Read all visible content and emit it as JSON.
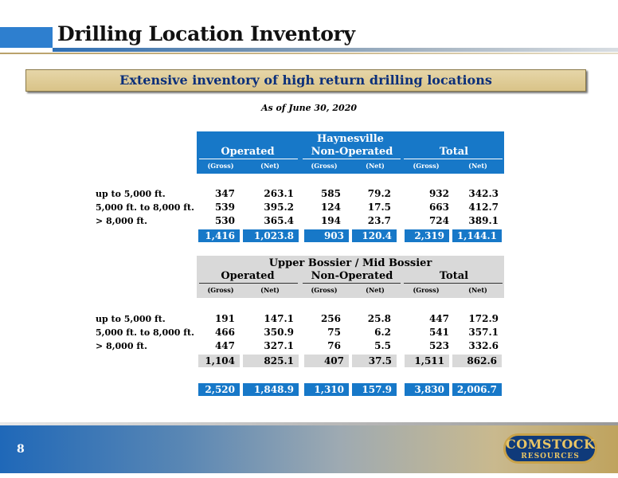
{
  "title": "Drilling Location Inventory",
  "banner": "Extensive inventory of high return drilling locations",
  "as_of": "As of June 30, 2020",
  "col_subs": [
    "(Gross)",
    "(Net)",
    "(Gross)",
    "(Net)",
    "(Gross)",
    "(Net)"
  ],
  "haynesville": {
    "title": "Haynesville",
    "groups": [
      "Operated",
      "Non-Operated",
      "Total"
    ],
    "rows": [
      {
        "label": "up to 5,000 ft.",
        "values": [
          "347",
          "263.1",
          "585",
          "79.2",
          "932",
          "342.3"
        ]
      },
      {
        "label": "5,000 ft. to 8,000 ft.",
        "values": [
          "539",
          "395.2",
          "124",
          "17.5",
          "663",
          "412.7"
        ]
      },
      {
        "label": "> 8,000 ft.",
        "values": [
          "530",
          "365.4",
          "194",
          "23.7",
          "724",
          "389.1"
        ]
      }
    ],
    "totals": [
      "1,416",
      "1,023.8",
      "903",
      "120.4",
      "2,319",
      "1,144.1"
    ]
  },
  "bossier": {
    "title": "Upper Bossier / Mid Bossier",
    "groups": [
      "Operated",
      "Non-Operated",
      "Total"
    ],
    "rows": [
      {
        "label": "up to 5,000 ft.",
        "values": [
          "191",
          "147.1",
          "256",
          "25.8",
          "447",
          "172.9"
        ]
      },
      {
        "label": "5,000 ft. to 8,000 ft.",
        "values": [
          "466",
          "350.9",
          "75",
          "6.2",
          "541",
          "357.1"
        ]
      },
      {
        "label": "> 8,000 ft.",
        "values": [
          "447",
          "327.1",
          "76",
          "5.5",
          "523",
          "332.6"
        ]
      }
    ],
    "totals": [
      "1,104",
      "825.1",
      "407",
      "37.5",
      "1,511",
      "862.6"
    ]
  },
  "grand_totals": [
    "2,520",
    "1,848.9",
    "1,310",
    "157.9",
    "3,830",
    "2,006.7"
  ],
  "page_number": "8",
  "logo": {
    "line1": "COMSTOCK",
    "line2": "RESOURCES"
  },
  "colors": {
    "accent_blue": "#1778c8",
    "banner_gold": "#d9c388",
    "banner_text": "#0b2f7a"
  }
}
